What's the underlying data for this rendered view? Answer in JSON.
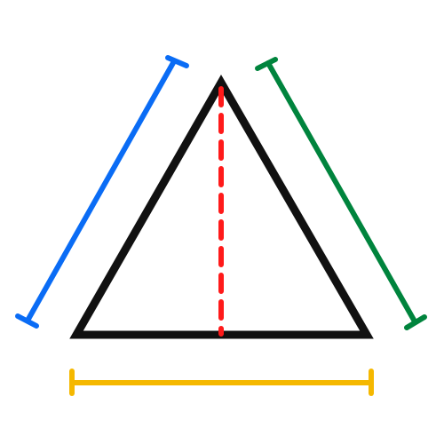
{
  "diagram": {
    "shape": "triangle",
    "colors": {
      "background": "#ffffff",
      "triangle": "#111111",
      "height": "#ff1a1a",
      "left_side": "#0a6cf5",
      "right_side": "#00843d",
      "base": "#f5b800"
    },
    "measure_lines": [
      {
        "name": "left-side",
        "color_key": "left_side",
        "style": "solid",
        "end_caps": true
      },
      {
        "name": "right-side",
        "color_key": "right_side",
        "style": "solid",
        "end_caps": true
      },
      {
        "name": "base",
        "color_key": "base",
        "style": "solid",
        "end_caps": true
      },
      {
        "name": "height",
        "color_key": "height",
        "style": "dashed",
        "end_caps": false
      }
    ]
  }
}
